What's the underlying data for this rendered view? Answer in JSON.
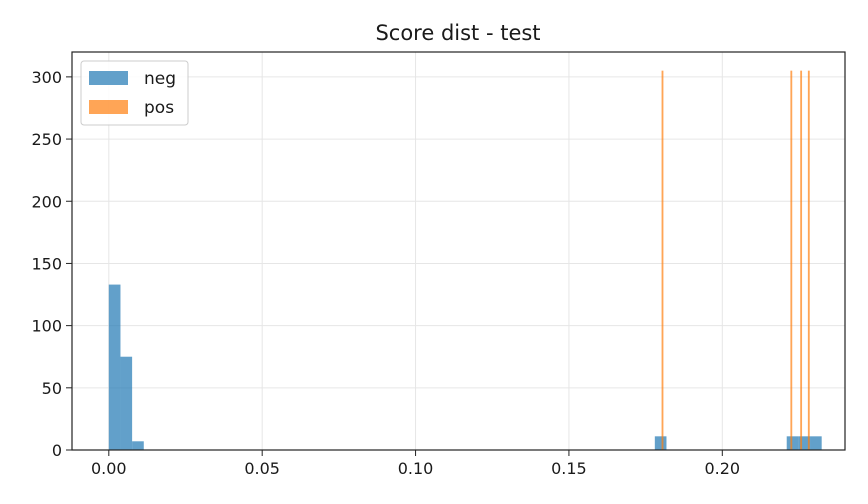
{
  "chart_data": {
    "type": "bar",
    "title": "Score dist - test",
    "xlabel": "",
    "ylabel": "",
    "xlim": [
      -0.012,
      0.24
    ],
    "ylim": [
      0,
      320
    ],
    "x_ticks": [
      0.0,
      0.05,
      0.1,
      0.15,
      0.2
    ],
    "x_tick_labels": [
      "0.00",
      "0.05",
      "0.10",
      "0.15",
      "0.20"
    ],
    "y_ticks": [
      0,
      50,
      100,
      150,
      200,
      250,
      300
    ],
    "y_tick_labels": [
      "0",
      "50",
      "100",
      "150",
      "200",
      "250",
      "300"
    ],
    "grid": true,
    "legend_position": "top-left",
    "series": [
      {
        "name": "neg",
        "color": "#1f77b4",
        "bin_width": 0.0038,
        "bins": [
          {
            "x": 0.0,
            "count": 133
          },
          {
            "x": 0.0038,
            "count": 75
          },
          {
            "x": 0.0076,
            "count": 7
          },
          {
            "x": 0.178,
            "count": 11
          },
          {
            "x": 0.221,
            "count": 11
          },
          {
            "x": 0.2248,
            "count": 11
          },
          {
            "x": 0.2286,
            "count": 11
          }
        ]
      },
      {
        "name": "pos",
        "color": "#ff7f0e",
        "bin_width": 0.0006,
        "bins": [
          {
            "x": 0.1802,
            "count": 305
          },
          {
            "x": 0.2222,
            "count": 305
          },
          {
            "x": 0.2254,
            "count": 305
          },
          {
            "x": 0.2279,
            "count": 305
          }
        ]
      }
    ]
  }
}
